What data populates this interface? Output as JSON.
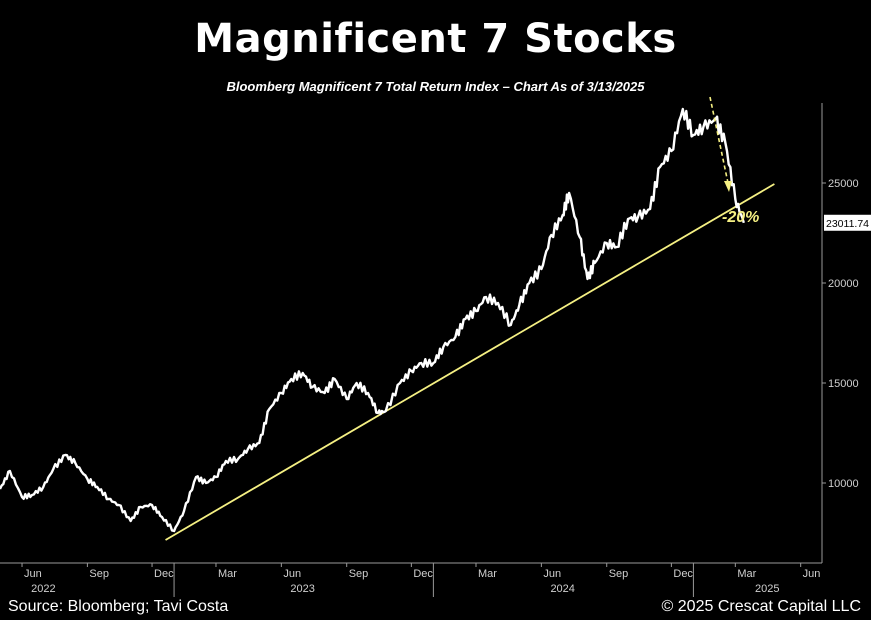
{
  "header": {
    "title": "Magnificent 7 Stocks",
    "subtitle": "Bloomberg Magnificent 7 Total Return Index – Chart As of 3/13/2025"
  },
  "footer": {
    "source": "Source: Bloomberg; Tavi Costa",
    "copyright": "© 2025 Crescat Capital LLC"
  },
  "chart_data": {
    "type": "line",
    "title": "Magnificent 7 Stocks",
    "subtitle": "Bloomberg Magnificent 7 Total Return Index – Chart As of 3/13/2025",
    "series": [
      {
        "values_note_free": true,
        "x": [
          "2022-05-01",
          "2022-05-15",
          "2022-06-01",
          "2022-06-15",
          "2022-07-01",
          "2022-07-15",
          "2022-08-01",
          "2022-08-15",
          "2022-09-01",
          "2022-09-15",
          "2022-10-01",
          "2022-10-15",
          "2022-11-01",
          "2022-11-15",
          "2022-12-01",
          "2022-12-15",
          "2023-01-01",
          "2023-01-15",
          "2023-02-01",
          "2023-02-15",
          "2023-03-01",
          "2023-03-15",
          "2023-04-01",
          "2023-04-15",
          "2023-05-01",
          "2023-05-15",
          "2023-06-01",
          "2023-06-15",
          "2023-07-01",
          "2023-07-15",
          "2023-08-01",
          "2023-08-15",
          "2023-09-01",
          "2023-09-15",
          "2023-10-01",
          "2023-10-15",
          "2023-10-26",
          "2023-11-15",
          "2023-12-01",
          "2023-12-15",
          "2024-01-01",
          "2024-01-15",
          "2024-02-01",
          "2024-02-15",
          "2024-03-01",
          "2024-03-15",
          "2024-04-01",
          "2024-04-19",
          "2024-05-01",
          "2024-05-15",
          "2024-06-01",
          "2024-06-15",
          "2024-07-01",
          "2024-07-10",
          "2024-07-25",
          "2024-08-05",
          "2024-08-15",
          "2024-09-01",
          "2024-09-15",
          "2024-10-01",
          "2024-10-15",
          "2024-11-01",
          "2024-11-15",
          "2024-12-01",
          "2024-12-17",
          "2025-01-01",
          "2025-01-15",
          "2025-02-01",
          "2025-02-15",
          "2025-03-01",
          "2025-03-13"
        ],
        "values": [
          9700,
          10600,
          9300,
          9400,
          9800,
          10700,
          11400,
          11000,
          10200,
          9800,
          9200,
          8900,
          8100,
          8800,
          8900,
          8300,
          7600,
          8600,
          10300,
          10000,
          10300,
          11100,
          11200,
          11700,
          12000,
          13700,
          14500,
          15200,
          15500,
          14800,
          14500,
          15200,
          14200,
          15000,
          14500,
          13500,
          13600,
          15000,
          15600,
          16000,
          16000,
          16800,
          17300,
          18200,
          18600,
          19300,
          19000,
          17900,
          18900,
          20000,
          20700,
          22400,
          23400,
          24500,
          22300,
          20200,
          21000,
          22000,
          21800,
          23200,
          23300,
          23700,
          25800,
          26600,
          28700,
          27400,
          27800,
          28200,
          27000,
          24200,
          23011.74
        ]
      }
    ],
    "last_value_label": "23011.74",
    "trendline": {
      "start": {
        "x": "2022-12-20",
        "y": 7150
      },
      "end": {
        "x": "2025-04-25",
        "y": 24950
      }
    },
    "annotation": {
      "text": "-20%",
      "arrow": "dashed, pointing down toward trendline",
      "color": "#f5f083"
    },
    "yticks": [
      10000,
      15000,
      20000,
      25000
    ],
    "ylim": [
      6000,
      29000
    ],
    "xlim": [
      "2022-05-01",
      "2025-07-01"
    ],
    "month_ticks": [
      {
        "x": "2022-06-01",
        "label": "Jun"
      },
      {
        "x": "2022-09-01",
        "label": "Sep"
      },
      {
        "x": "2022-12-01",
        "label": "Dec"
      },
      {
        "x": "2023-03-01",
        "label": "Mar"
      },
      {
        "x": "2023-06-01",
        "label": "Jun"
      },
      {
        "x": "2023-09-01",
        "label": "Sep"
      },
      {
        "x": "2023-12-01",
        "label": "Dec"
      },
      {
        "x": "2024-03-01",
        "label": "Mar"
      },
      {
        "x": "2024-06-01",
        "label": "Jun"
      },
      {
        "x": "2024-09-01",
        "label": "Sep"
      },
      {
        "x": "2024-12-01",
        "label": "Dec"
      },
      {
        "x": "2025-03-01",
        "label": "Mar"
      },
      {
        "x": "2025-06-01",
        "label": "Jun"
      }
    ],
    "year_labels": [
      {
        "x": "2022-07-01",
        "label": "2022"
      },
      {
        "x": "2023-07-01",
        "label": "2023"
      },
      {
        "x": "2024-07-01",
        "label": "2024"
      },
      {
        "x": "2025-04-15",
        "label": "2025"
      }
    ],
    "year_separators": [
      "2023-01-01",
      "2024-01-01",
      "2025-01-01"
    ],
    "colors": {
      "background": "#000000",
      "line": "#ffffff",
      "trendline": "#f5f083",
      "axis": "#9a9a9a",
      "tick_text": "#cfcfcf"
    }
  }
}
